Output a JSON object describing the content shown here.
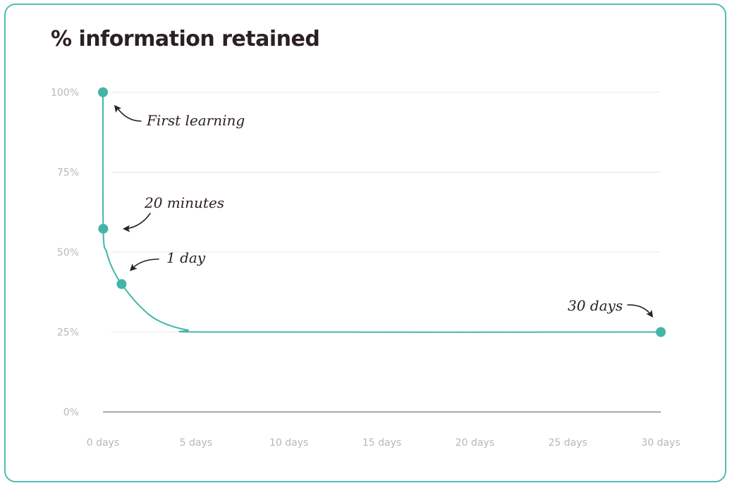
{
  "chart_data": {
    "type": "line",
    "title": "% information retained",
    "xlabel": "",
    "ylabel": "",
    "xlim": [
      0,
      30
    ],
    "ylim": [
      0,
      100
    ],
    "x_ticks": [
      {
        "value": 0,
        "label": "0 days"
      },
      {
        "value": 5,
        "label": "5 days"
      },
      {
        "value": 10,
        "label": "10 days"
      },
      {
        "value": 15,
        "label": "15 days"
      },
      {
        "value": 20,
        "label": "20 days"
      },
      {
        "value": 25,
        "label": "25 days"
      },
      {
        "value": 30,
        "label": "30 days"
      }
    ],
    "y_ticks": [
      {
        "value": 0,
        "label": "0%"
      },
      {
        "value": 25,
        "label": "25%"
      },
      {
        "value": 50,
        "label": "50%"
      },
      {
        "value": 75,
        "label": "75%"
      },
      {
        "value": 100,
        "label": "100%"
      }
    ],
    "grid": true,
    "points": [
      {
        "x": 0,
        "y": 100,
        "label": "First learning"
      },
      {
        "x": 0.014,
        "y": 57.3,
        "label": "20 minutes"
      },
      {
        "x": 1,
        "y": 40,
        "label": "1 day"
      },
      {
        "x": 30,
        "y": 25,
        "label": "30 days"
      }
    ],
    "curve": [
      {
        "x": 0,
        "y": 100
      },
      {
        "x": 0.014,
        "y": 57.3
      },
      {
        "x": 0.2,
        "y": 50
      },
      {
        "x": 0.5,
        "y": 45
      },
      {
        "x": 1,
        "y": 40
      },
      {
        "x": 2,
        "y": 33
      },
      {
        "x": 3,
        "y": 28.5
      },
      {
        "x": 4.5,
        "y": 25.7
      },
      {
        "x": 6.5,
        "y": 25
      },
      {
        "x": 30,
        "y": 25
      }
    ],
    "colors": {
      "line": "#43b5a8",
      "grid": "#e6e6e6",
      "axis": "#8c8c8c",
      "ink": "#2b2024"
    }
  }
}
